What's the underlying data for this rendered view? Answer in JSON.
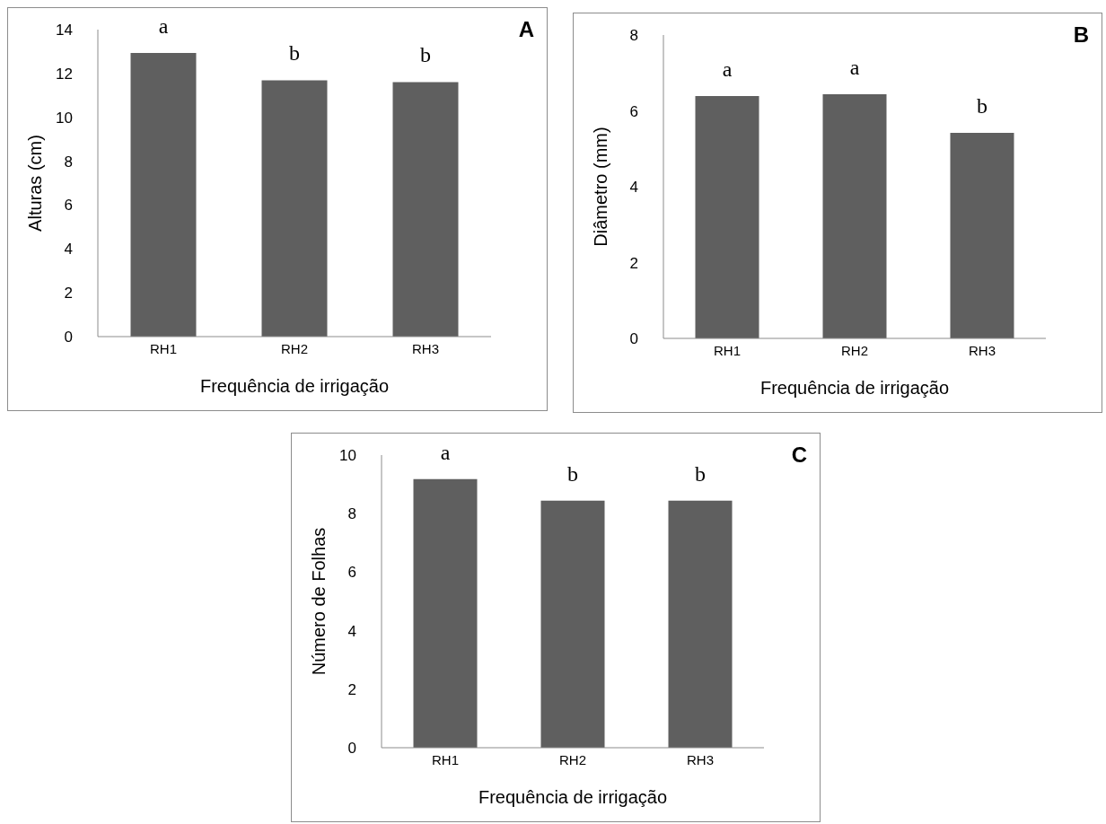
{
  "chart_data": [
    {
      "type": "bar",
      "xlabel": "Frequência de irrigação",
      "ylabel": "Alturas (cm)",
      "categories": [
        "RH1",
        "RH2",
        "RH3"
      ],
      "values": [
        12.94,
        11.69,
        11.61
      ],
      "color": "#5f5f5f",
      "ylim": [
        0,
        14
      ],
      "yticks": [
        0,
        2,
        4,
        6,
        8,
        10,
        12,
        14
      ],
      "grid": false,
      "legend": false,
      "annotations": [
        "A",
        "a",
        "b",
        "b"
      ]
    },
    {
      "type": "bar",
      "xlabel": "Frequência de irrigação",
      "ylabel": "Diâmetro (mm)",
      "categories": [
        "RH1",
        "RH2",
        "RH3"
      ],
      "values": [
        6.39,
        6.44,
        5.42
      ],
      "color": "#5f5f5f",
      "ylim": [
        0,
        8
      ],
      "yticks": [
        0,
        2,
        4,
        6,
        8
      ],
      "grid": false,
      "legend": false,
      "annotations": [
        "B",
        "a",
        "a",
        "b"
      ]
    },
    {
      "type": "bar",
      "xlabel": "Frequência de irrigação",
      "ylabel": "Número de Folhas",
      "categories": [
        "RH1",
        "RH2",
        "RH3"
      ],
      "values": [
        9.18,
        8.44,
        8.44
      ],
      "color": "#5f5f5f",
      "ylim": [
        0,
        10
      ],
      "yticks": [
        0,
        2,
        4,
        6,
        8,
        10
      ],
      "grid": false,
      "legend": false,
      "annotations": [
        "C",
        "a",
        "b",
        "b"
      ]
    }
  ]
}
